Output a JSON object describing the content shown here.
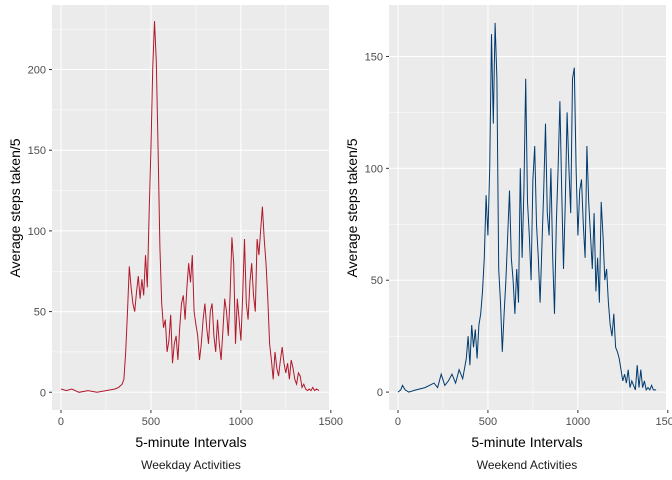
{
  "colors": {
    "weekday_line": "#B2182B",
    "weekend_line": "#003B6F",
    "panel_bg": "#EBEBEB",
    "grid": "#FFFFFF"
  },
  "chart_data": [
    {
      "type": "line",
      "xlabel": "5-minute Intervals",
      "ylabel": "Average steps taken/5",
      "caption": "Weekday Activities",
      "xlim": [
        -50,
        1490
      ],
      "ylim": [
        -11,
        240
      ],
      "x_ticks": [
        0,
        500,
        1000,
        1500
      ],
      "x_tick_labels": [
        "0",
        "500",
        "1000",
        "1500"
      ],
      "y_ticks": [
        0,
        50,
        100,
        150,
        200
      ],
      "y_tick_labels": [
        "0",
        "50",
        "100",
        "150",
        "200"
      ],
      "grid": true,
      "series": [
        {
          "x": [
            0,
            30,
            60,
            100,
            150,
            200,
            250,
            300,
            320,
            340,
            350,
            360,
            370,
            380,
            390,
            400,
            410,
            420,
            430,
            440,
            450,
            460,
            470,
            480,
            490,
            500,
            510,
            520,
            530,
            540,
            550,
            560,
            570,
            580,
            590,
            600,
            610,
            620,
            630,
            640,
            650,
            660,
            670,
            680,
            690,
            700,
            710,
            720,
            730,
            740,
            750,
            760,
            770,
            780,
            790,
            800,
            810,
            820,
            830,
            840,
            850,
            860,
            870,
            880,
            890,
            900,
            910,
            920,
            930,
            940,
            950,
            960,
            970,
            980,
            990,
            1000,
            1010,
            1020,
            1030,
            1040,
            1050,
            1060,
            1070,
            1080,
            1090,
            1100,
            1110,
            1120,
            1130,
            1140,
            1150,
            1160,
            1170,
            1180,
            1190,
            1200,
            1210,
            1220,
            1230,
            1240,
            1250,
            1260,
            1270,
            1280,
            1290,
            1300,
            1310,
            1320,
            1330,
            1340,
            1350,
            1360,
            1370,
            1380,
            1390,
            1400,
            1410,
            1420,
            1435
          ],
          "y": [
            2,
            1,
            2,
            0,
            1,
            0,
            1,
            2,
            3,
            5,
            8,
            25,
            50,
            78,
            65,
            55,
            50,
            62,
            72,
            58,
            70,
            60,
            85,
            65,
            110,
            150,
            200,
            230,
            205,
            150,
            90,
            55,
            40,
            45,
            25,
            32,
            48,
            18,
            30,
            35,
            20,
            40,
            55,
            60,
            45,
            65,
            80,
            68,
            85,
            50,
            42,
            35,
            20,
            30,
            45,
            55,
            40,
            30,
            50,
            55,
            35,
            25,
            45,
            30,
            20,
            38,
            58,
            50,
            35,
            60,
            96,
            80,
            30,
            58,
            45,
            32,
            60,
            95,
            55,
            45,
            68,
            80,
            60,
            50,
            95,
            85,
            100,
            115,
            95,
            80,
            58,
            30,
            20,
            8,
            25,
            15,
            10,
            20,
            28,
            18,
            12,
            18,
            8,
            20,
            15,
            8,
            5,
            12,
            10,
            3,
            5,
            2,
            1,
            2,
            1,
            3,
            1,
            2,
            1
          ]
        }
      ]
    },
    {
      "type": "line",
      "xlabel": "5-minute Intervals",
      "ylabel": "Average steps taken/5",
      "caption": "Weekend Activities",
      "xlim": [
        -50,
        1490
      ],
      "ylim": [
        -8,
        173
      ],
      "x_ticks": [
        0,
        500,
        1000,
        1500
      ],
      "x_tick_labels": [
        "0",
        "500",
        "1000",
        "1500"
      ],
      "y_ticks": [
        0,
        50,
        100,
        150
      ],
      "y_tick_labels": [
        "0",
        "50",
        "100",
        "150"
      ],
      "grid": true,
      "series": [
        {
          "x": [
            0,
            15,
            25,
            40,
            60,
            100,
            150,
            200,
            220,
            240,
            260,
            280,
            300,
            320,
            340,
            360,
            380,
            390,
            400,
            410,
            420,
            430,
            440,
            450,
            460,
            470,
            480,
            490,
            500,
            510,
            520,
            530,
            540,
            550,
            560,
            570,
            580,
            590,
            600,
            610,
            620,
            630,
            640,
            650,
            660,
            670,
            680,
            690,
            700,
            710,
            720,
            730,
            740,
            750,
            760,
            770,
            780,
            790,
            800,
            810,
            820,
            830,
            840,
            850,
            860,
            870,
            880,
            890,
            900,
            910,
            920,
            930,
            940,
            950,
            960,
            970,
            980,
            990,
            1000,
            1010,
            1020,
            1030,
            1040,
            1050,
            1060,
            1070,
            1080,
            1090,
            1100,
            1110,
            1120,
            1130,
            1140,
            1150,
            1160,
            1170,
            1180,
            1190,
            1200,
            1210,
            1220,
            1230,
            1240,
            1250,
            1260,
            1270,
            1280,
            1290,
            1300,
            1310,
            1320,
            1330,
            1340,
            1350,
            1360,
            1370,
            1380,
            1390,
            1400,
            1410,
            1420,
            1435
          ],
          "y": [
            0,
            1,
            3,
            1,
            0,
            1,
            2,
            4,
            2,
            8,
            3,
            5,
            8,
            4,
            10,
            6,
            15,
            25,
            12,
            30,
            20,
            28,
            15,
            30,
            35,
            45,
            60,
            88,
            70,
            100,
            160,
            120,
            165,
            140,
            55,
            40,
            18,
            35,
            50,
            70,
            90,
            60,
            50,
            35,
            55,
            40,
            100,
            60,
            90,
            140,
            85,
            70,
            50,
            95,
            110,
            75,
            60,
            40,
            65,
            90,
            120,
            80,
            70,
            100,
            60,
            35,
            75,
            100,
            130,
            90,
            55,
            85,
            125,
            100,
            80,
            140,
            145,
            100,
            70,
            90,
            95,
            75,
            60,
            110,
            85,
            70,
            55,
            80,
            45,
            60,
            40,
            85,
            70,
            50,
            55,
            40,
            30,
            25,
            35,
            20,
            18,
            15,
            10,
            5,
            8,
            4,
            10,
            2,
            5,
            3,
            1,
            12,
            2,
            10,
            2,
            5,
            1,
            2,
            1,
            3,
            1,
            1
          ]
        }
      ]
    }
  ]
}
